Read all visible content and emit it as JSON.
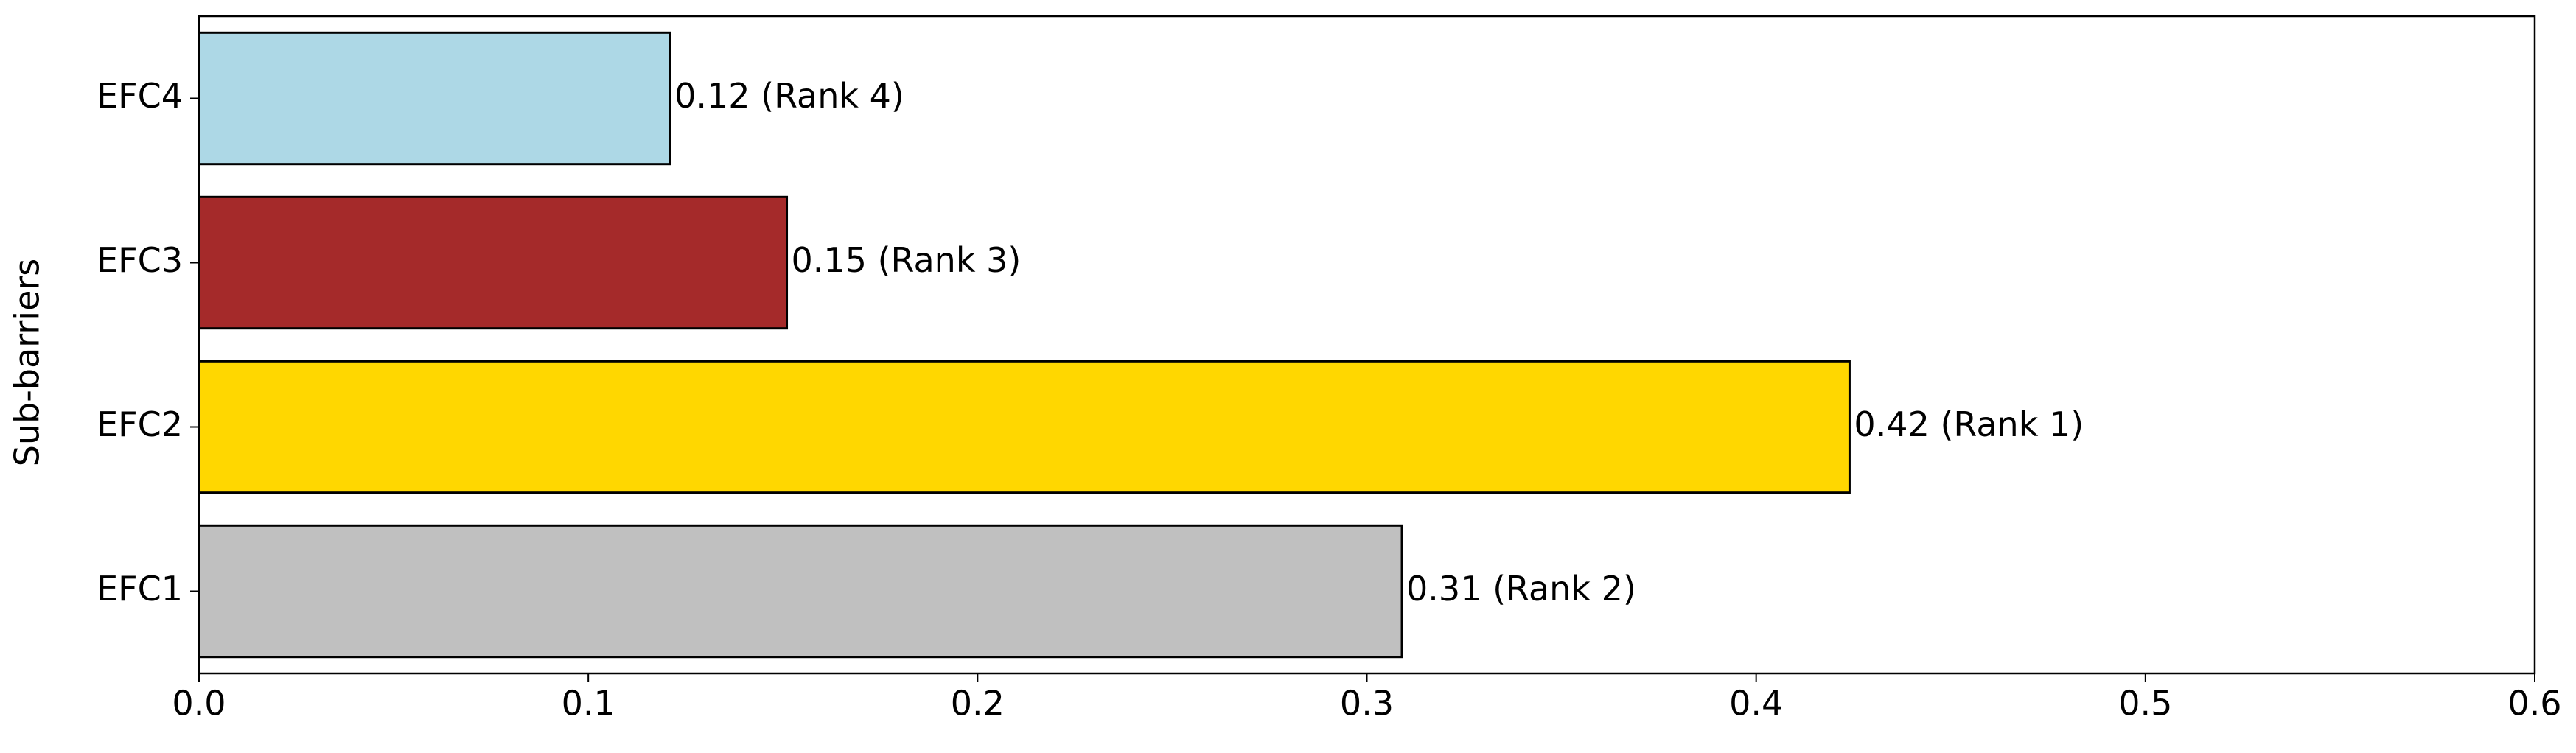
{
  "chart_data": {
    "type": "barh",
    "ylabel": "Sub-barriers",
    "categories": [
      "EFC1",
      "EFC2",
      "EFC3",
      "EFC4"
    ],
    "values": [
      0.309,
      0.424,
      0.151,
      0.121
    ],
    "value_labels": [
      "0.31 (Rank 2)",
      "0.42 (Rank 1)",
      "0.15 (Rank 3)",
      "0.12 (Rank 4)"
    ],
    "colors": [
      "#c0c0c0",
      "#ffd700",
      "#a52a2a",
      "#add8e6"
    ],
    "xlim": [
      0,
      0.6
    ],
    "xticks": [
      {
        "value": 0,
        "label": "0.0"
      },
      0.1,
      0.2,
      0.3,
      0.4,
      0.5,
      0.6
    ],
    "grid": false
  }
}
